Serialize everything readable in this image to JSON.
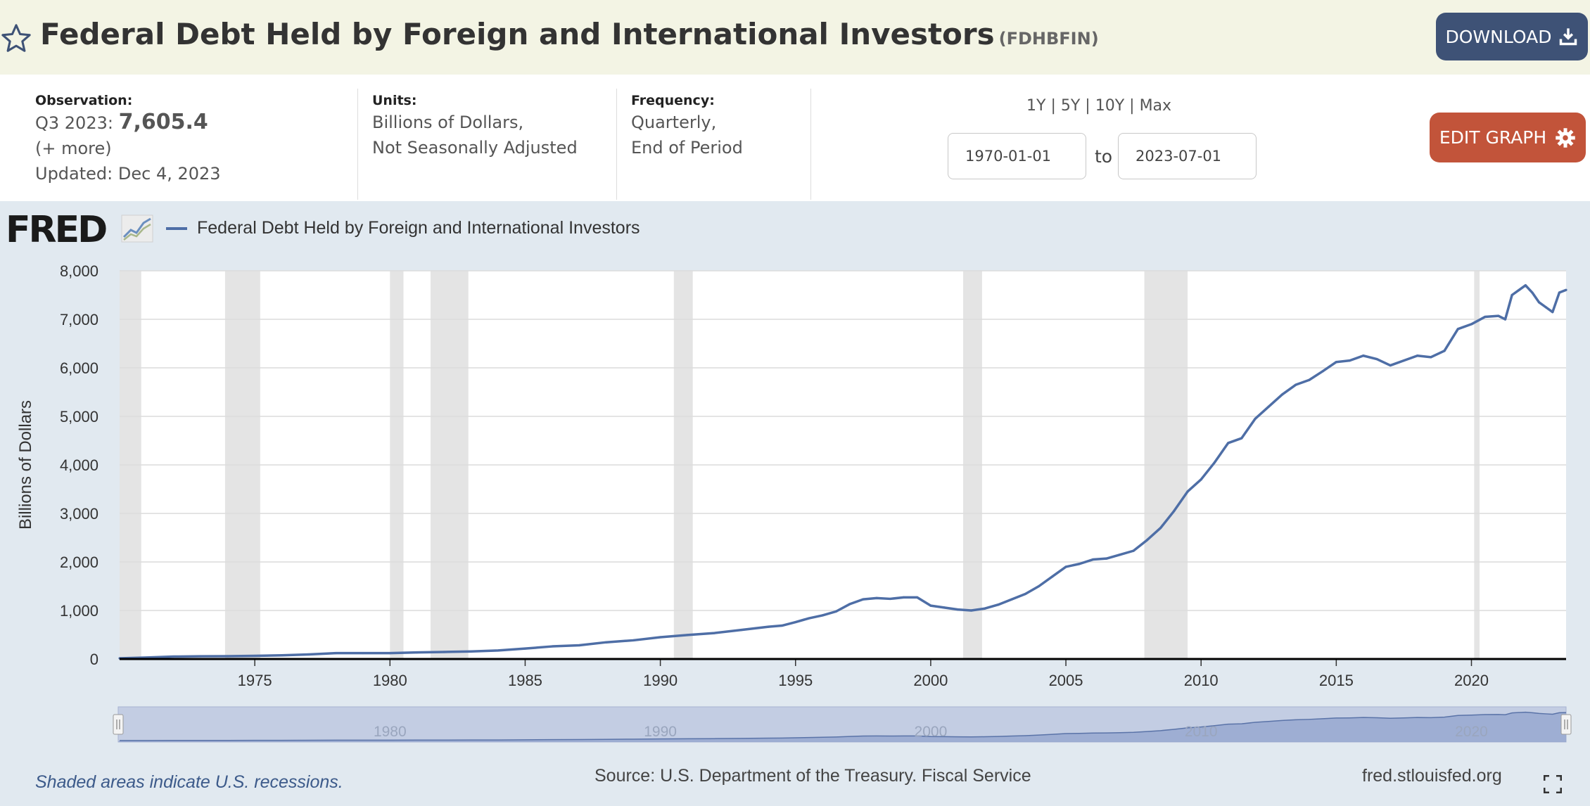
{
  "header": {
    "title": "Federal Debt Held by Foreign and International Investors",
    "series_id": "(FDHBFIN)",
    "download_label": "DOWNLOAD"
  },
  "info": {
    "observation_label": "Observation:",
    "observation_period": "Q3 2023:",
    "observation_value": "7,605.4",
    "more": "(+ more)",
    "updated": "Updated: Dec 4, 2023",
    "units_label": "Units:",
    "units_line1": "Billions of Dollars,",
    "units_line2": "Not Seasonally Adjusted",
    "frequency_label": "Frequency:",
    "frequency_line1": "Quarterly,",
    "frequency_line2": "End of Period"
  },
  "range": {
    "options": [
      "1Y",
      "5Y",
      "10Y",
      "Max"
    ],
    "separator": "|",
    "start": "1970-01-01",
    "end": "2023-07-01",
    "to": "to"
  },
  "edit_graph_label": "EDIT GRAPH",
  "logo_text": "FRED",
  "footer": {
    "recession_note": "Shaded areas indicate U.S. recessions.",
    "source": "Source: U.S. Department of the Treasury. Fiscal Service",
    "url": "fred.stlouisfed.org"
  },
  "colors": {
    "line": "#4e6ea6",
    "recession": "#e4e4e4",
    "header_bg": "#f3f4e4",
    "download_bg": "#3e5276",
    "edit_bg": "#c2543a",
    "navigator_fill": "#8ea1cc"
  },
  "chart_data": {
    "type": "line",
    "title": "",
    "xlabel": "",
    "ylabel": "Billions of Dollars",
    "ylim": [
      0,
      8000
    ],
    "xlim": [
      1970.0,
      2023.5
    ],
    "yticks": [
      0,
      1000,
      2000,
      3000,
      4000,
      5000,
      6000,
      7000,
      8000
    ],
    "ytick_labels": [
      "0",
      "1,000",
      "2,000",
      "3,000",
      "4,000",
      "5,000",
      "6,000",
      "7,000",
      "8,000"
    ],
    "xticks": [
      1975,
      1980,
      1985,
      1990,
      1995,
      2000,
      2005,
      2010,
      2015,
      2020
    ],
    "navigator_labels": [
      1980,
      1990,
      2000,
      2010,
      2020
    ],
    "grid": true,
    "legend_position": "top-left",
    "recessions": [
      [
        1970.0,
        1970.8
      ],
      [
        1973.9,
        1975.2
      ],
      [
        1980.0,
        1980.5
      ],
      [
        1981.5,
        1982.9
      ],
      [
        1990.5,
        1991.2
      ],
      [
        2001.2,
        2001.9
      ],
      [
        2007.9,
        2009.5
      ],
      [
        2020.1,
        2020.3
      ]
    ],
    "series": [
      {
        "name": "Federal Debt Held by Foreign and International Investors",
        "points": [
          [
            1970.0,
            14
          ],
          [
            1971.0,
            30
          ],
          [
            1972.0,
            50
          ],
          [
            1973.0,
            57
          ],
          [
            1974.0,
            58
          ],
          [
            1975.0,
            66
          ],
          [
            1976.0,
            76
          ],
          [
            1977.0,
            95
          ],
          [
            1978.0,
            121
          ],
          [
            1979.0,
            122
          ],
          [
            1980.0,
            121
          ],
          [
            1981.0,
            136
          ],
          [
            1982.0,
            145
          ],
          [
            1983.0,
            155
          ],
          [
            1984.0,
            175
          ],
          [
            1985.0,
            215
          ],
          [
            1986.0,
            260
          ],
          [
            1987.0,
            283
          ],
          [
            1988.0,
            345
          ],
          [
            1989.0,
            385
          ],
          [
            1990.0,
            450
          ],
          [
            1991.0,
            495
          ],
          [
            1992.0,
            535
          ],
          [
            1993.0,
            600
          ],
          [
            1994.0,
            665
          ],
          [
            1994.5,
            688
          ],
          [
            1995.0,
            760
          ],
          [
            1995.5,
            840
          ],
          [
            1996.0,
            900
          ],
          [
            1996.5,
            980
          ],
          [
            1997.0,
            1130
          ],
          [
            1997.5,
            1230
          ],
          [
            1998.0,
            1255
          ],
          [
            1998.5,
            1240
          ],
          [
            1999.0,
            1270
          ],
          [
            1999.5,
            1270
          ],
          [
            2000.0,
            1100
          ],
          [
            2000.5,
            1060
          ],
          [
            2001.0,
            1020
          ],
          [
            2001.5,
            1000
          ],
          [
            2002.0,
            1040
          ],
          [
            2002.5,
            1120
          ],
          [
            2003.0,
            1230
          ],
          [
            2003.5,
            1340
          ],
          [
            2004.0,
            1500
          ],
          [
            2004.5,
            1700
          ],
          [
            2005.0,
            1900
          ],
          [
            2005.5,
            1960
          ],
          [
            2006.0,
            2050
          ],
          [
            2006.5,
            2070
          ],
          [
            2007.0,
            2150
          ],
          [
            2007.5,
            2230
          ],
          [
            2008.0,
            2450
          ],
          [
            2008.5,
            2700
          ],
          [
            2009.0,
            3050
          ],
          [
            2009.5,
            3450
          ],
          [
            2010.0,
            3700
          ],
          [
            2010.5,
            4050
          ],
          [
            2011.0,
            4450
          ],
          [
            2011.5,
            4550
          ],
          [
            2012.0,
            4950
          ],
          [
            2012.5,
            5200
          ],
          [
            2013.0,
            5450
          ],
          [
            2013.5,
            5650
          ],
          [
            2014.0,
            5750
          ],
          [
            2014.5,
            5930
          ],
          [
            2015.0,
            6120
          ],
          [
            2015.5,
            6150
          ],
          [
            2016.0,
            6250
          ],
          [
            2016.5,
            6180
          ],
          [
            2017.0,
            6050
          ],
          [
            2017.5,
            6150
          ],
          [
            2018.0,
            6250
          ],
          [
            2018.5,
            6220
          ],
          [
            2019.0,
            6350
          ],
          [
            2019.5,
            6800
          ],
          [
            2020.0,
            6900
          ],
          [
            2020.5,
            7050
          ],
          [
            2021.0,
            7070
          ],
          [
            2021.25,
            7000
          ],
          [
            2021.5,
            7500
          ],
          [
            2022.0,
            7700
          ],
          [
            2022.25,
            7550
          ],
          [
            2022.5,
            7350
          ],
          [
            2022.75,
            7250
          ],
          [
            2023.0,
            7150
          ],
          [
            2023.25,
            7550
          ],
          [
            2023.5,
            7605.4
          ]
        ]
      }
    ]
  }
}
